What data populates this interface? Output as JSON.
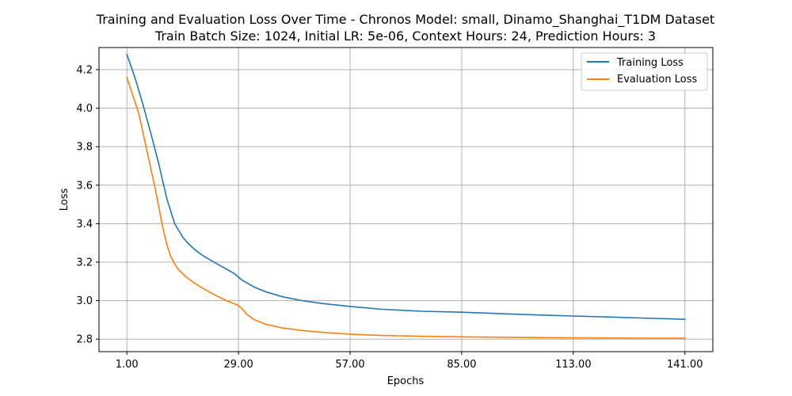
{
  "chart_data": {
    "type": "line",
    "title": "Training and Evaluation Loss Over Time - Chronos Model: small, Dinamo_Shanghai_T1DM Dataset",
    "subtitle": "Train Batch Size: 1024, Initial LR: 5e-06, Context Hours: 24, Prediction Hours: 3",
    "xlabel": "Epochs",
    "ylabel": "Loss",
    "xlim": [
      -6,
      148
    ],
    "ylim": [
      2.735,
      4.315
    ],
    "xticks": [
      1,
      29,
      57,
      85,
      113,
      141
    ],
    "xtick_labels": [
      "1.00",
      "29.00",
      "57.00",
      "85.00",
      "113.00",
      "141.00"
    ],
    "yticks": [
      2.8,
      3.0,
      3.2,
      3.4,
      3.6,
      3.8,
      4.0,
      4.2
    ],
    "ytick_labels": [
      "2.8",
      "3.0",
      "3.2",
      "3.4",
      "3.6",
      "3.8",
      "4.0",
      "4.2"
    ],
    "grid": true,
    "legend_position": "top-right",
    "series": [
      {
        "name": "Training Loss",
        "color": "#1f77b4",
        "x": [
          1,
          3,
          5,
          7,
          9,
          11,
          13,
          15,
          16,
          18,
          20,
          22,
          25,
          28,
          30,
          33,
          36,
          40,
          45,
          50,
          57,
          65,
          75,
          85,
          95,
          105,
          113,
          120,
          130,
          141
        ],
        "y": [
          4.28,
          4.16,
          4.02,
          3.87,
          3.71,
          3.53,
          3.4,
          3.33,
          3.305,
          3.265,
          3.235,
          3.21,
          3.175,
          3.14,
          3.105,
          3.07,
          3.045,
          3.02,
          3.0,
          2.985,
          2.97,
          2.955,
          2.945,
          2.94,
          2.932,
          2.925,
          2.92,
          2.916,
          2.91,
          2.903
        ]
      },
      {
        "name": "Evaluation Loss",
        "color": "#ff7f0e",
        "x": [
          1,
          4,
          6,
          8,
          10,
          11,
          12,
          13,
          14,
          16,
          18,
          20,
          23,
          26,
          29,
          30,
          31,
          33,
          36,
          40,
          45,
          50,
          57,
          65,
          75,
          85,
          95,
          105,
          113,
          120,
          130,
          141
        ],
        "y": [
          4.16,
          3.97,
          3.78,
          3.59,
          3.38,
          3.29,
          3.23,
          3.19,
          3.16,
          3.12,
          3.09,
          3.065,
          3.03,
          3.0,
          2.975,
          2.955,
          2.93,
          2.9,
          2.876,
          2.858,
          2.845,
          2.835,
          2.826,
          2.819,
          2.815,
          2.812,
          2.81,
          2.808,
          2.807,
          2.806,
          2.805,
          2.805
        ]
      }
    ]
  }
}
